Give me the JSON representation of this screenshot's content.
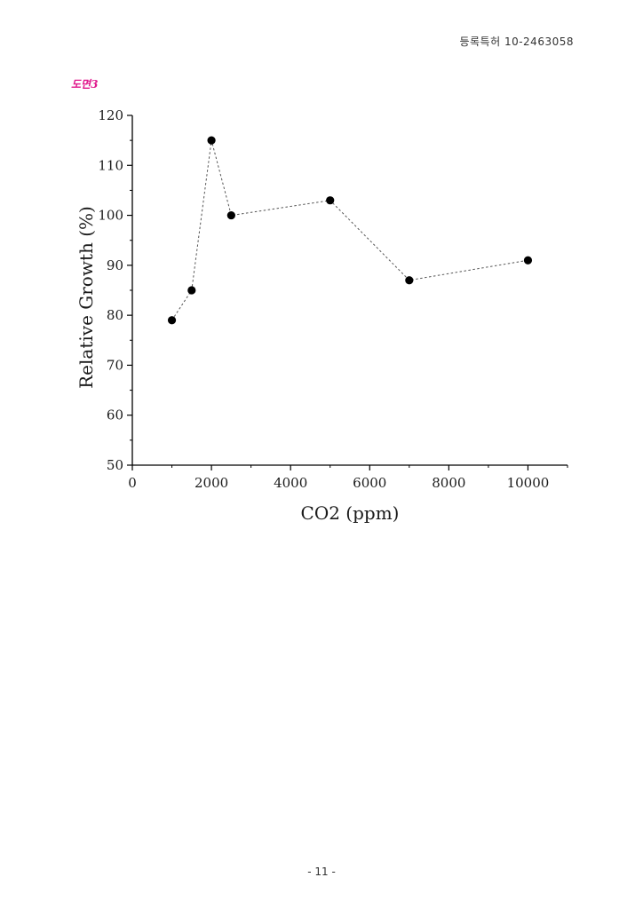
{
  "header": {
    "patent_number": "등록특허 10-2463058"
  },
  "figure": {
    "label": "도면3",
    "label_color": "#e0188c"
  },
  "chart_data": {
    "type": "scatter",
    "line_style": "dotted",
    "marker": "filled-circle",
    "marker_color": "#000000",
    "line_color": "#555555",
    "xlabel": "CO2 (ppm)",
    "ylabel": "Relative Growth (%)",
    "xlim": [
      0,
      11000
    ],
    "ylim": [
      50,
      120
    ],
    "xticks": [
      0,
      2000,
      4000,
      6000,
      8000,
      10000
    ],
    "yticks": [
      50,
      60,
      70,
      80,
      90,
      100,
      110,
      120
    ],
    "grid": false,
    "series": [
      {
        "x": [
          1000,
          1500,
          2000,
          2500,
          5000,
          7000,
          10000
        ],
        "y": [
          79,
          85,
          115,
          100,
          103,
          87,
          91
        ]
      }
    ]
  },
  "footer": {
    "page_number": "- 11 -"
  }
}
